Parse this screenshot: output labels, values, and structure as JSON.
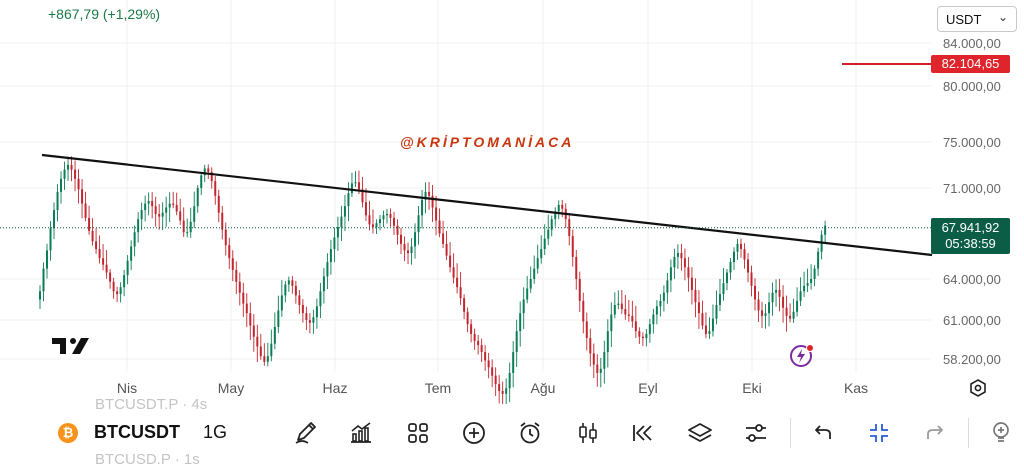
{
  "header": {
    "change": "+867,79 (+1,29%)",
    "currency": "USDT"
  },
  "watermark": "@KRİPTOMANİACA",
  "price_axis": {
    "labels": [
      "84.000,00",
      "80.000,00",
      "75.000,00",
      "71.000,00",
      "64.000,00",
      "61.000,00",
      "58.200,00"
    ],
    "alert_price": "82.104,65",
    "last_price": "67.941,92",
    "countdown": "05:38:59",
    "colors": {
      "alert": "#e0242b",
      "last": "#0b5d46"
    }
  },
  "time_axis": {
    "months": [
      "Nis",
      "May",
      "Haz",
      "Tem",
      "Ağu",
      "Eyl",
      "Eki",
      "Kas"
    ]
  },
  "chart_data": {
    "type": "candlestick",
    "title": "",
    "trendline": {
      "from": [
        0,
        73500
      ],
      "to": [
        217,
        65700
      ]
    },
    "horizontal_line": 82104.65,
    "last_price": 67941.92,
    "up_color": "#0b7d54",
    "down_color": "#c2262e",
    "closes": [
      63100,
      64800,
      66200,
      67900,
      69300,
      70700,
      71800,
      72600,
      73000,
      72600,
      71800,
      70900,
      69800,
      68700,
      67700,
      66900,
      66300,
      65600,
      65100,
      64500,
      63800,
      63100,
      62900,
      63400,
      64300,
      65400,
      66500,
      67600,
      68600,
      69300,
      69800,
      70000,
      69600,
      69000,
      68800,
      69100,
      69500,
      69800,
      69700,
      69200,
      68500,
      67600,
      67600,
      68400,
      69600,
      71000,
      72100,
      72700,
      72400,
      71600,
      70400,
      69100,
      67800,
      66600,
      65600,
      64700,
      63800,
      63000,
      62200,
      61500,
      60600,
      59800,
      59100,
      58400,
      58000,
      58400,
      59300,
      60500,
      61700,
      62800,
      63600,
      63900,
      63500,
      62800,
      62100,
      61500,
      61000,
      60800,
      61200,
      62000,
      63100,
      64200,
      65300,
      66300,
      67200,
      68000,
      68800,
      69600,
      70600,
      71400,
      71500,
      70900,
      69900,
      68900,
      68200,
      68000,
      68300,
      68600,
      68900,
      69000,
      68700,
      68100,
      67400,
      66700,
      66200,
      66000,
      66500,
      67600,
      68900,
      70100,
      70700,
      70400,
      69500,
      68500,
      67500,
      66700,
      65800,
      64900,
      64100,
      63400,
      62600,
      61600,
      60700,
      60000,
      59500,
      59200,
      58700,
      58100,
      57600,
      57000,
      56400,
      55900,
      55700,
      56100,
      57200,
      58700,
      60200,
      61500,
      62500,
      63300,
      64000,
      64800,
      65600,
      66300,
      67100,
      67800,
      68600,
      69200,
      69700,
      69400,
      68600,
      67300,
      65700,
      64000,
      62400,
      60900,
      59700,
      58600,
      57800,
      57200,
      57500,
      58700,
      60200,
      61400,
      62100,
      62200,
      61800,
      61400,
      61300,
      60900,
      60200,
      59800,
      59700,
      60000,
      60700,
      61400,
      62000,
      62400,
      63000,
      63900,
      64900,
      65700,
      66000,
      65600,
      64900,
      64100,
      63200,
      62300,
      61500,
      60600,
      60000,
      60200,
      61100,
      62100,
      62900,
      63700,
      64500,
      65300,
      66100,
      66700,
      66300,
      65500,
      64500,
      63500,
      62500,
      61700,
      61300,
      61500,
      62300,
      63000,
      63200,
      62700,
      61900,
      61300,
      61100,
      61600,
      62400,
      63100,
      63500,
      63700,
      64000,
      64800,
      66100,
      67400,
      68100
    ]
  },
  "toolbar": {
    "symbol": "BTCUSDT",
    "interval": "1G",
    "ghost_above": "BTCUSDT.P · 4s",
    "ghost_below": "BTCUSD.P · 1s",
    "coin_glyph": "₿"
  }
}
